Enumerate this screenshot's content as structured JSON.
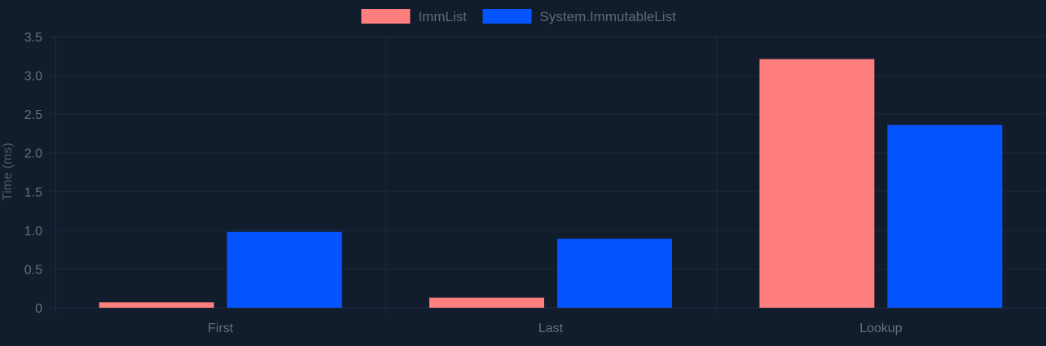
{
  "chart_data": {
    "type": "bar",
    "categories": [
      "First",
      "Last",
      "Lookup"
    ],
    "series": [
      {
        "name": "ImmList",
        "values": [
          0.07,
          0.13,
          3.21
        ],
        "color": "#ff7f7f"
      },
      {
        "name": "System.ImmutableList",
        "values": [
          0.98,
          0.89,
          2.36
        ],
        "color": "#0455ff"
      }
    ],
    "ylabel": "Time (ms)",
    "xlabel": "",
    "ylim": [
      0,
      3.5
    ],
    "yticks": [
      "0",
      "0.5",
      "1.0",
      "1.5",
      "2.0",
      "2.5",
      "3.0",
      "3.5"
    ],
    "legend": "top-center",
    "grid": true
  }
}
